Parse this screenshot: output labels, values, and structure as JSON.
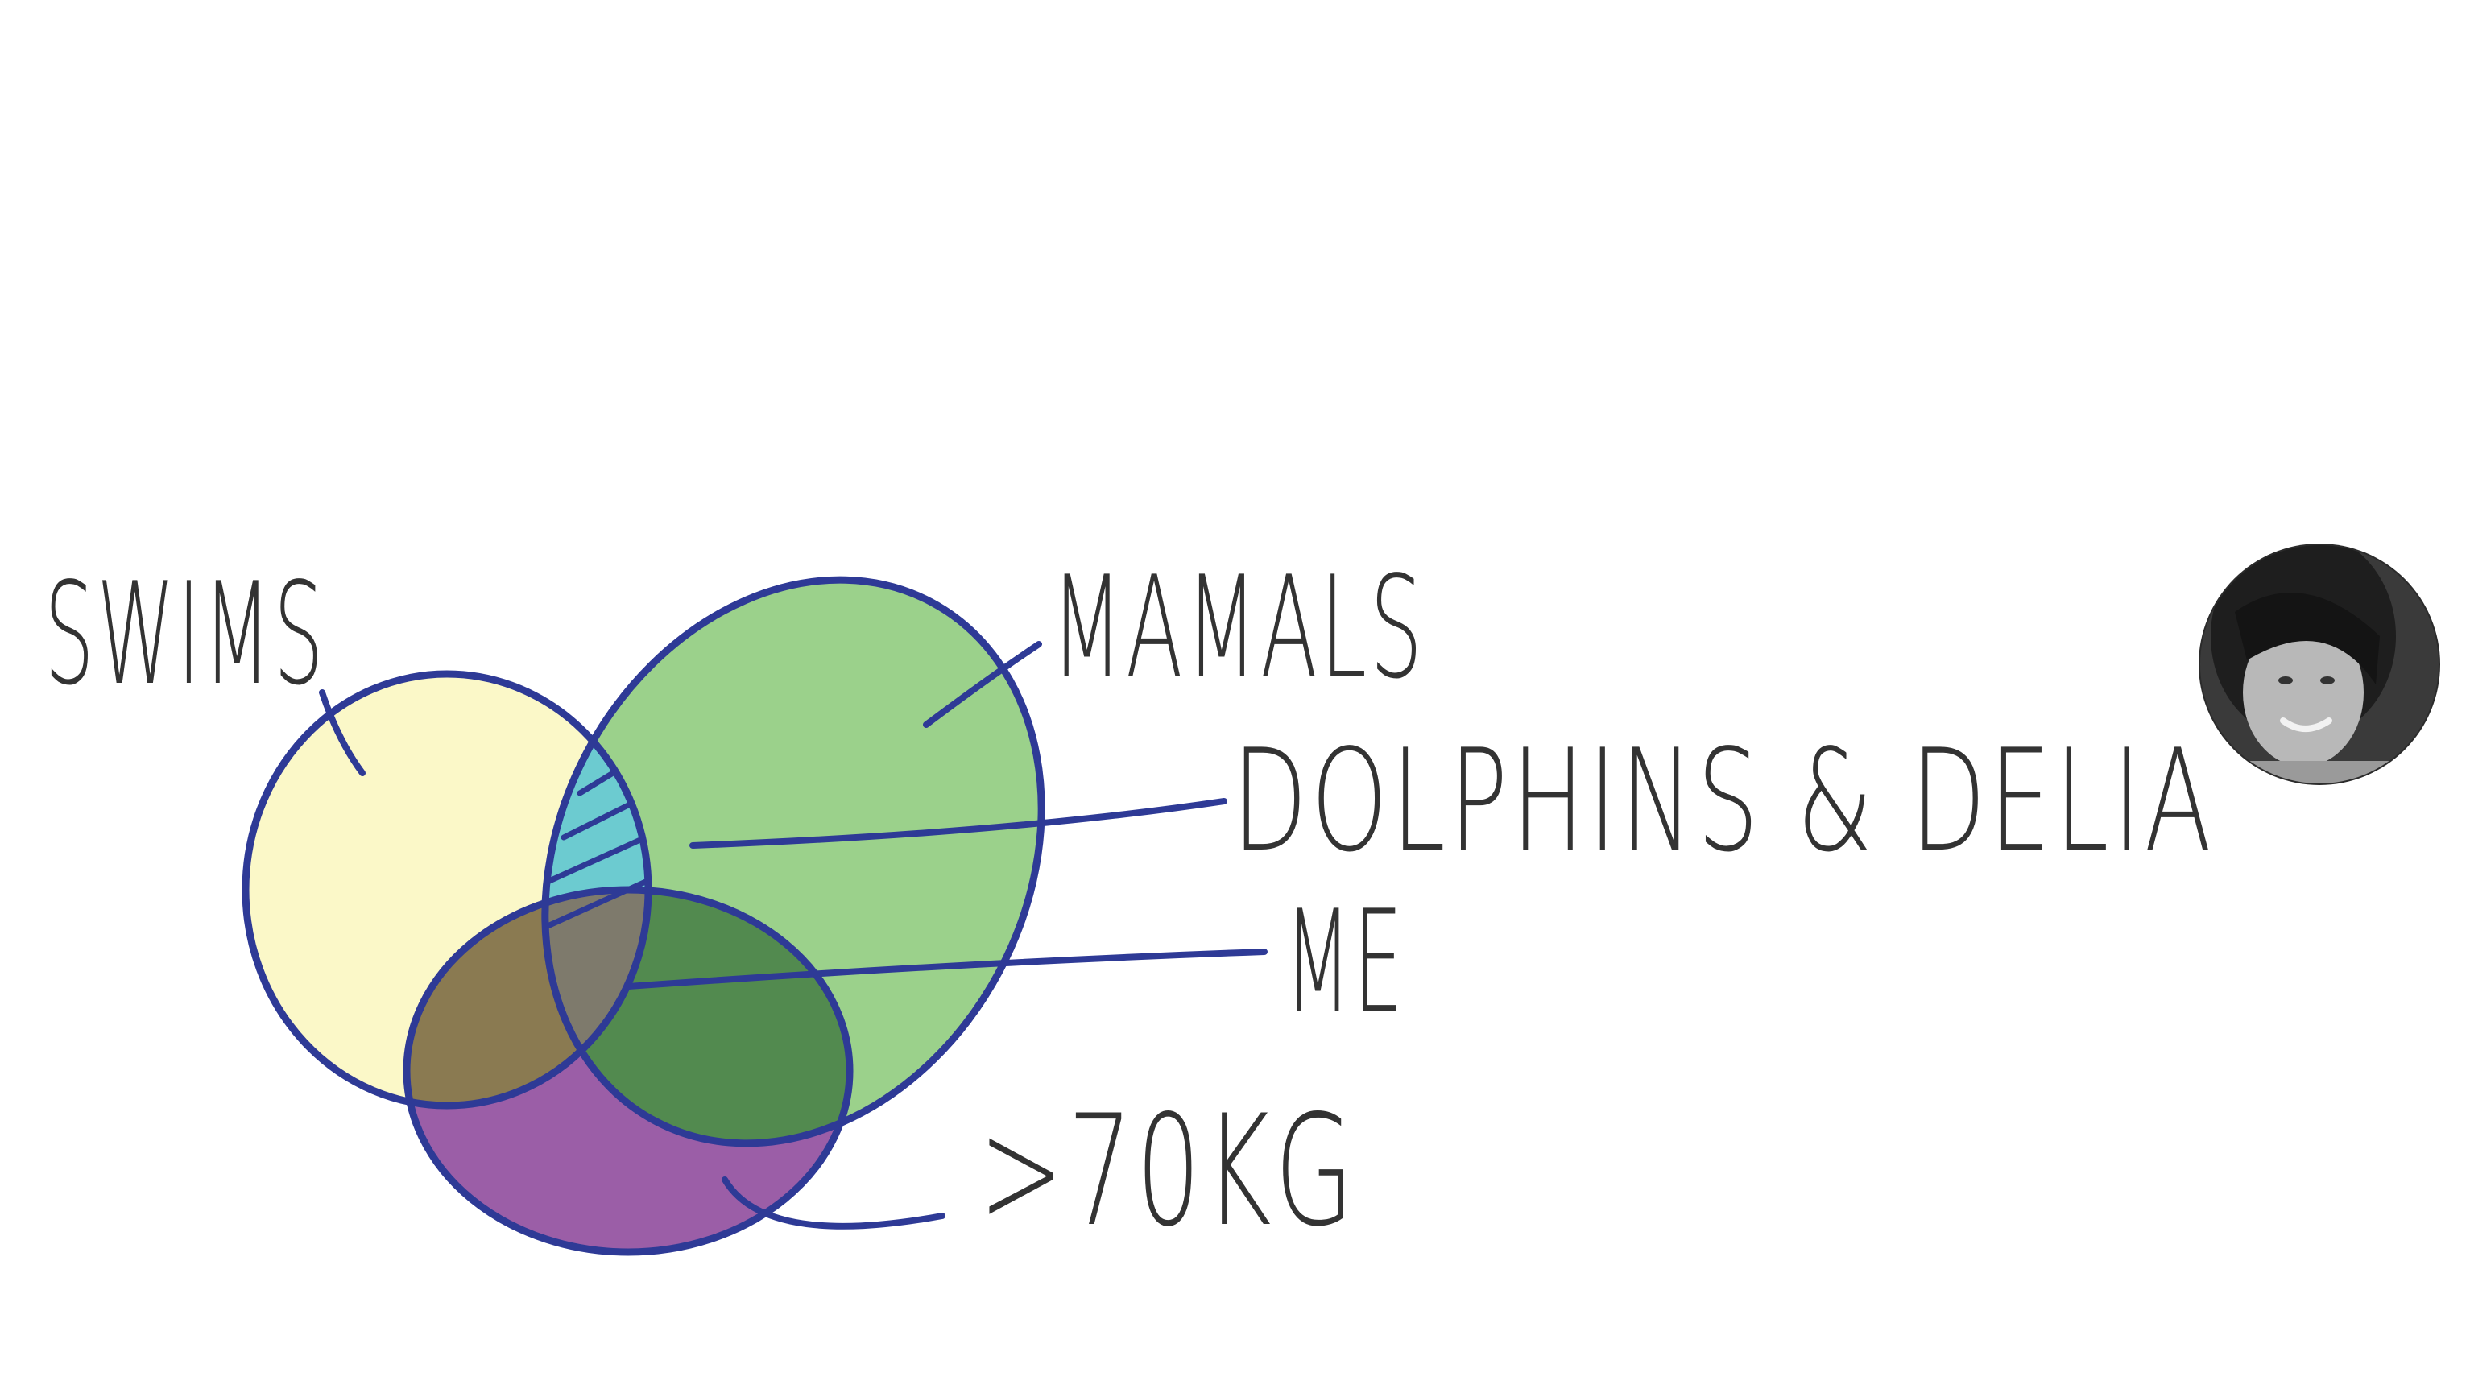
{
  "labels": {
    "swims": "SWIMS",
    "mammals": "MAMALS",
    "dolphins_delia": "DOLPHINS & DELIA",
    "me": "ME",
    "over_70kg": ">70KG"
  },
  "colors": {
    "outline": "#2e3a96",
    "swims_fill": "#fbf8c8",
    "mammals_fill": "#9bd18b",
    "over_70kg_fill": "#9b5ea7",
    "swims_mammals_overlap": "#6ccbd0",
    "all_three_overlap": "#7e7a6c",
    "swims_70kg_overlap": "#8a7a51",
    "mammals_70kg_overlap": "#528a4f",
    "text": "#333333"
  },
  "avatar": {
    "icon": "person-photo-icon"
  }
}
